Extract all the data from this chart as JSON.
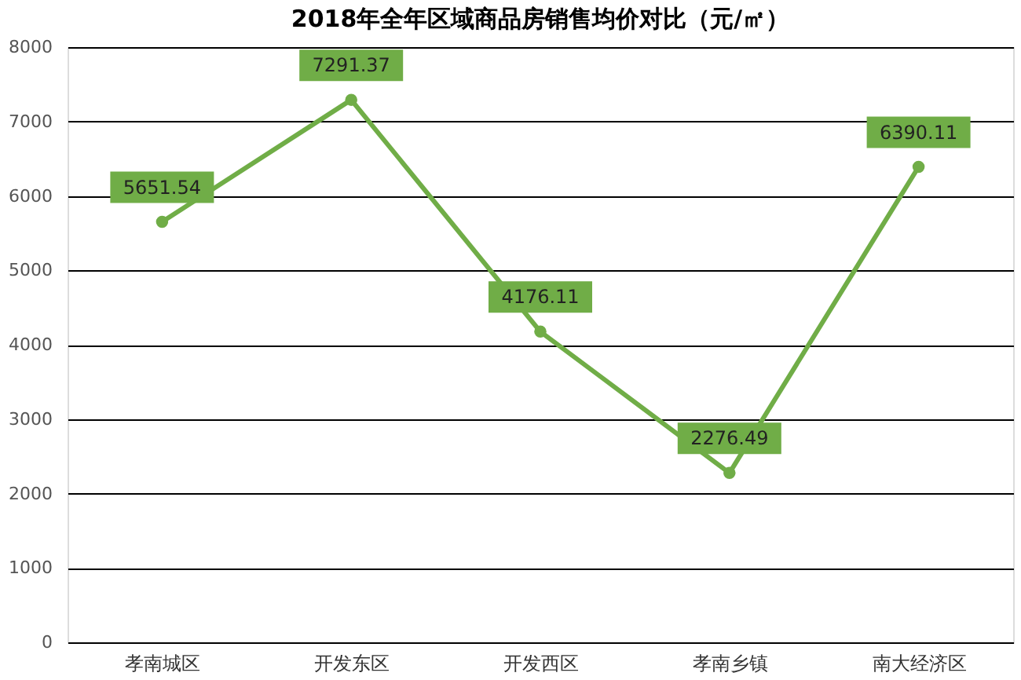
{
  "chart_data": {
    "type": "line",
    "title": "2018年全年区域商品房销售均价对比（元/㎡）",
    "categories": [
      "孝南城区",
      "开发东区",
      "开发西区",
      "孝南乡镇",
      "南大经济区"
    ],
    "series": [
      {
        "color": "#70ad47",
        "values": [
          5651.54,
          7291.37,
          4176.11,
          2276.49,
          6390.11
        ]
      }
    ],
    "ylim": [
      0,
      8000
    ],
    "yticks": [
      0,
      1000,
      2000,
      3000,
      4000,
      5000,
      6000,
      7000,
      8000
    ],
    "grid": "y",
    "marker": "circle",
    "line_style": "solid",
    "data_labels": true
  }
}
